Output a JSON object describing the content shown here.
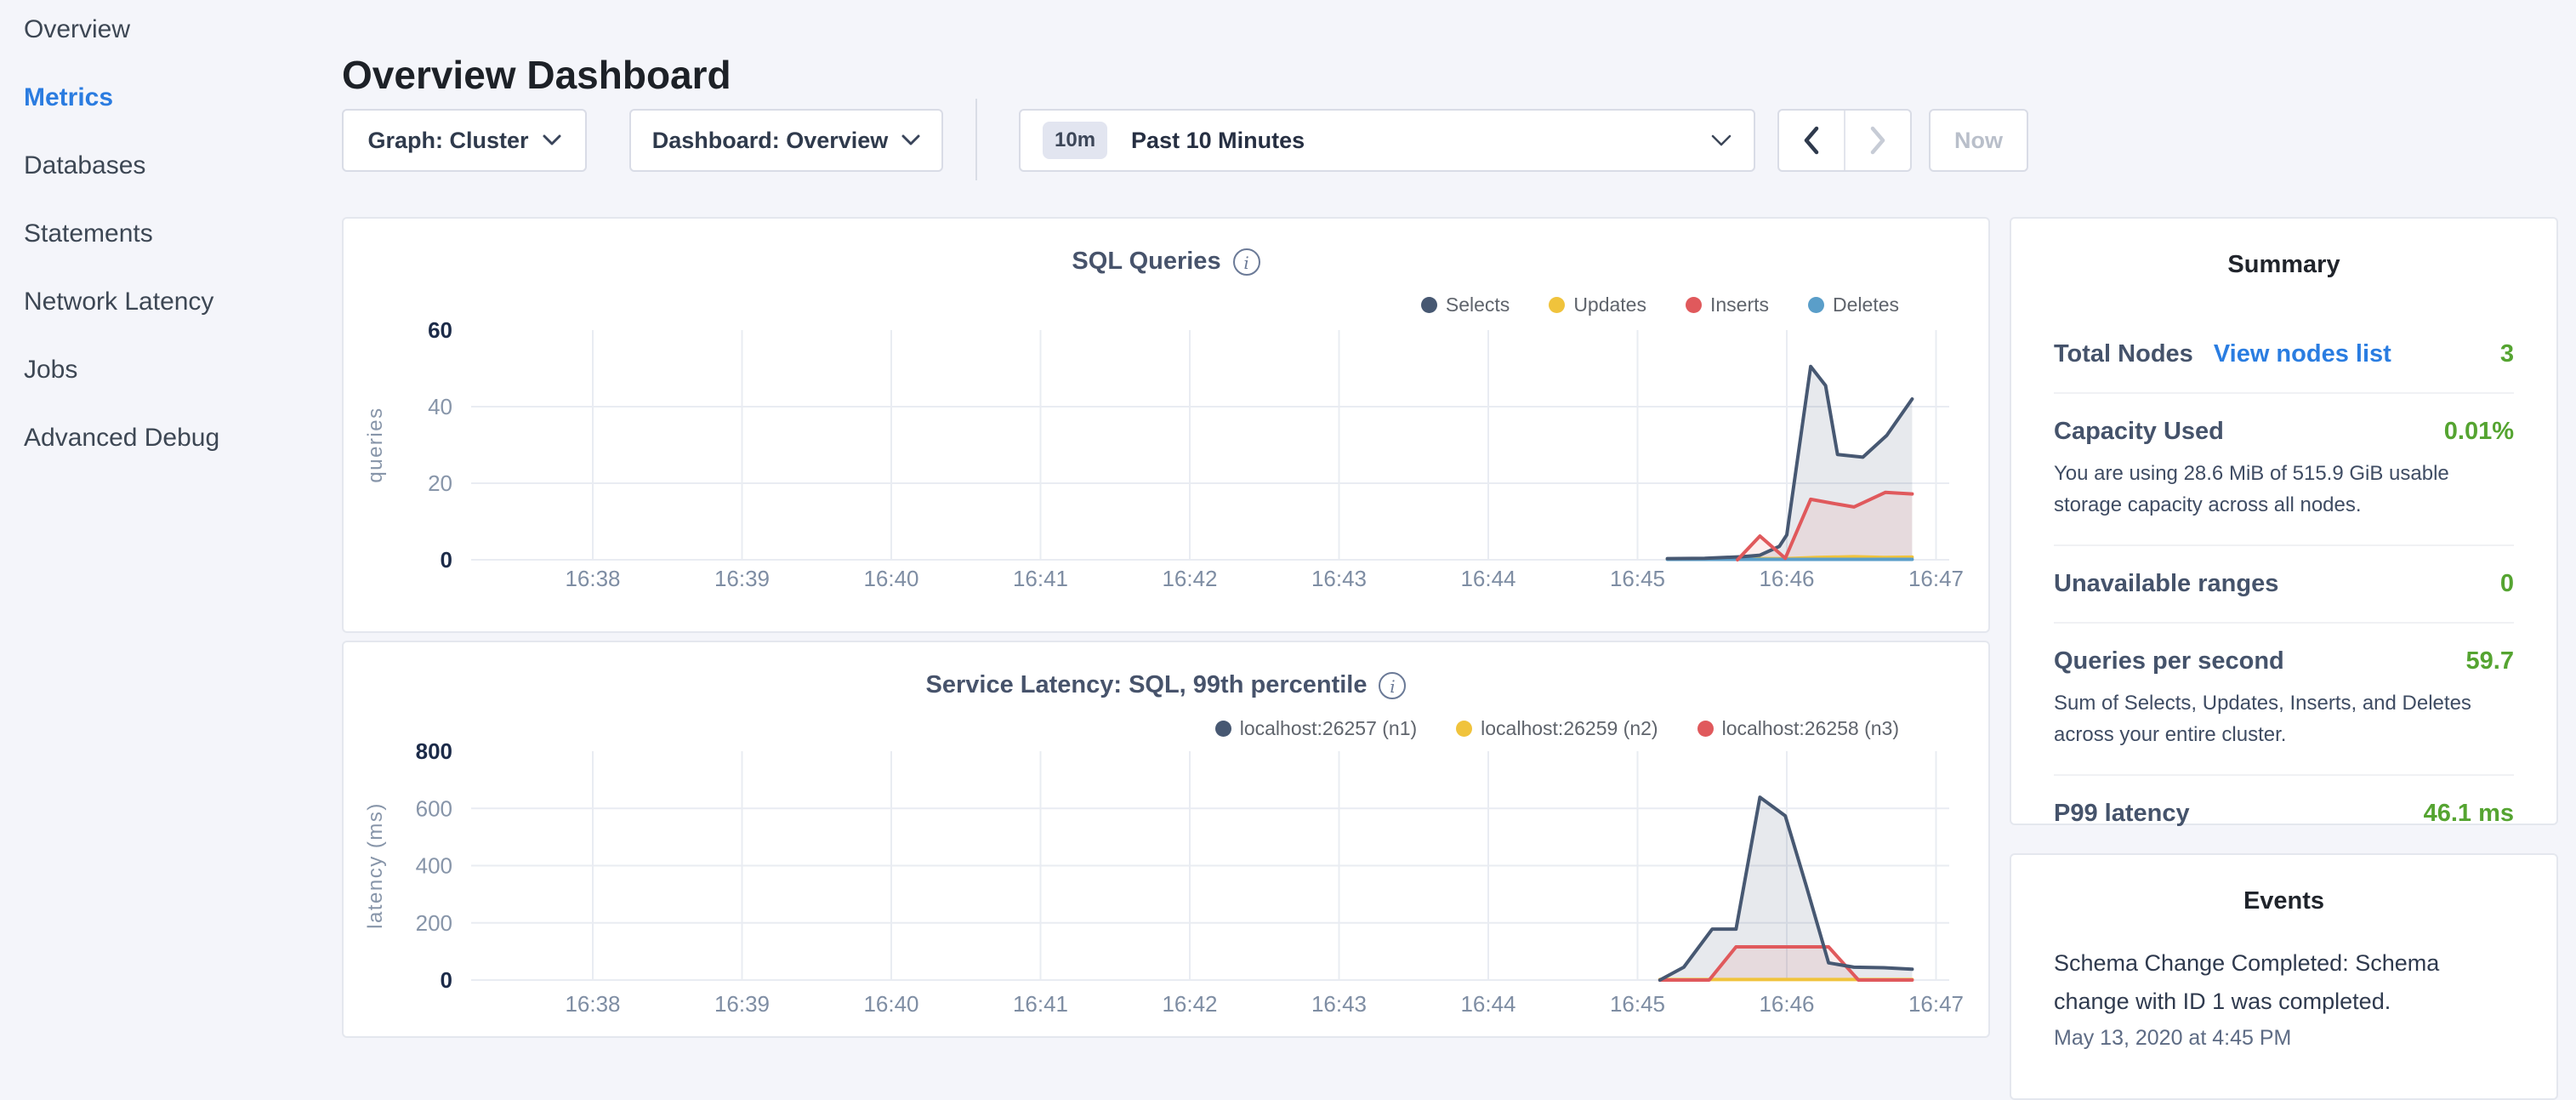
{
  "sidebar": {
    "items": [
      {
        "label": "Overview",
        "active": false
      },
      {
        "label": "Metrics",
        "active": true
      },
      {
        "label": "Databases",
        "active": false
      },
      {
        "label": "Statements",
        "active": false
      },
      {
        "label": "Network Latency",
        "active": false
      },
      {
        "label": "Jobs",
        "active": false
      },
      {
        "label": "Advanced Debug",
        "active": false
      }
    ],
    "active_color": "#2b7ce0"
  },
  "header": {
    "title": "Overview Dashboard"
  },
  "controls": {
    "graph_dropdown": "Graph: Cluster",
    "dashboard_dropdown": "Dashboard: Overview",
    "time_badge": "10m",
    "time_label": "Past 10 Minutes",
    "now_button": "Now"
  },
  "summary": {
    "title": "Summary",
    "rows": [
      {
        "label": "Total Nodes",
        "link": "View nodes list",
        "value": "3",
        "desc": ""
      },
      {
        "label": "Capacity Used",
        "value": "0.01%",
        "desc": "You are using 28.6 MiB of 515.9 GiB usable storage capacity across all nodes."
      },
      {
        "label": "Unavailable ranges",
        "value": "0",
        "desc": ""
      },
      {
        "label": "Queries per second",
        "value": "59.7",
        "desc": "Sum of Selects, Updates, Inserts, and Deletes across your entire cluster."
      },
      {
        "label": "P99 latency",
        "value": "46.1 ms",
        "desc": ""
      }
    ],
    "value_color": "#55a431",
    "link_color": "#2a7de1"
  },
  "events": {
    "title": "Events",
    "items": [
      {
        "text": "Schema Change Completed: Schema change with ID 1 was completed.",
        "time": "May 13, 2020 at 4:45 PM"
      }
    ]
  },
  "chart_data": [
    {
      "type": "area",
      "title": "SQL Queries",
      "ylabel": "queries",
      "x_ticks": [
        "16:38",
        "16:39",
        "16:40",
        "16:41",
        "16:42",
        "16:43",
        "16:44",
        "16:45",
        "16:46",
        "16:47"
      ],
      "xlim_minutes_after_1638": [
        0,
        9
      ],
      "y_ticks": [
        0,
        20,
        40,
        60
      ],
      "ylim": [
        0,
        60
      ],
      "grid": true,
      "legend_position": "top-right",
      "series": [
        {
          "name": "Selects",
          "color": "#475872",
          "fill": "rgba(71,88,114,0.13)",
          "z": 3,
          "points": [
            [
              7.2,
              0.3
            ],
            [
              7.45,
              0.4
            ],
            [
              7.7,
              0.8
            ],
            [
              7.82,
              1.2
            ],
            [
              7.95,
              3.5
            ],
            [
              8.0,
              6.5
            ],
            [
              8.16,
              50.5
            ],
            [
              8.26,
              45.5
            ],
            [
              8.34,
              27.5
            ],
            [
              8.51,
              26.8
            ],
            [
              8.67,
              32.5
            ],
            [
              8.84,
              42.0
            ]
          ]
        },
        {
          "name": "Updates",
          "color": "#f0c33c",
          "fill": "none",
          "z": 1,
          "points": [
            [
              7.2,
              0.2
            ],
            [
              7.6,
              0.3
            ],
            [
              8.0,
              0.3
            ],
            [
              8.2,
              0.6
            ],
            [
              8.45,
              0.8
            ],
            [
              8.65,
              0.6
            ],
            [
              8.84,
              0.7
            ]
          ]
        },
        {
          "name": "Inserts",
          "color": "#e0595c",
          "fill": "rgba(224,89,92,0.10)",
          "z": 4,
          "points": [
            [
              7.67,
              0.0
            ],
            [
              7.82,
              6.2
            ],
            [
              7.99,
              0.4
            ],
            [
              8.16,
              15.8
            ],
            [
              8.3,
              14.8
            ],
            [
              8.45,
              13.8
            ],
            [
              8.66,
              17.6
            ],
            [
              8.84,
              17.2
            ]
          ]
        },
        {
          "name": "Deletes",
          "color": "#5a9ec9",
          "fill": "none",
          "z": 2,
          "points": [
            [
              7.2,
              0.1
            ],
            [
              8.84,
              0.1
            ]
          ]
        }
      ]
    },
    {
      "type": "area",
      "title": "Service Latency: SQL, 99th percentile",
      "ylabel": "latency (ms)",
      "x_ticks": [
        "16:38",
        "16:39",
        "16:40",
        "16:41",
        "16:42",
        "16:43",
        "16:44",
        "16:45",
        "16:46",
        "16:47"
      ],
      "xlim_minutes_after_1638": [
        0,
        9
      ],
      "y_ticks": [
        0,
        200,
        400,
        600,
        800
      ],
      "ylim": [
        0,
        800
      ],
      "grid": true,
      "legend_position": "top-right",
      "series": [
        {
          "name": "localhost:26257 (n1)",
          "color": "#475872",
          "fill": "rgba(71,88,114,0.13)",
          "z": 3,
          "points": [
            [
              7.15,
              0
            ],
            [
              7.31,
              45
            ],
            [
              7.5,
              178
            ],
            [
              7.66,
              178
            ],
            [
              7.82,
              639
            ],
            [
              7.99,
              574
            ],
            [
              8.13,
              330
            ],
            [
              8.28,
              60
            ],
            [
              8.45,
              45
            ],
            [
              8.65,
              43
            ],
            [
              8.84,
              38
            ]
          ]
        },
        {
          "name": "localhost:26259 (n2)",
          "color": "#f0c33c",
          "fill": "none",
          "z": 1,
          "points": [
            [
              7.15,
              2
            ],
            [
              8.84,
              2
            ]
          ]
        },
        {
          "name": "localhost:26258 (n3)",
          "color": "#e0595c",
          "fill": "rgba(224,89,92,0.10)",
          "z": 2,
          "points": [
            [
              7.15,
              0
            ],
            [
              7.48,
              0
            ],
            [
              7.66,
              116
            ],
            [
              8.28,
              116
            ],
            [
              8.48,
              0
            ],
            [
              8.84,
              0
            ]
          ]
        }
      ]
    }
  ]
}
